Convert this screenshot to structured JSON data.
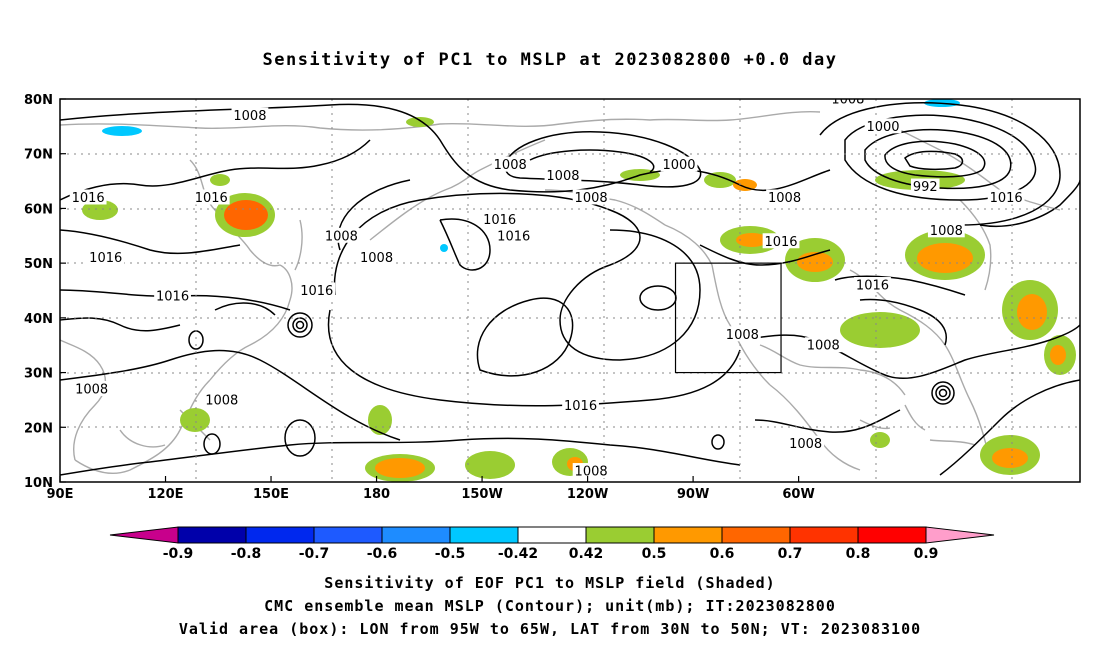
{
  "title": "Sensitivity of PC1 to MSLP at 2023082800 +0.0 day",
  "map": {
    "lon_labels": [
      "90E",
      "120E",
      "150E",
      "180",
      "150W",
      "120W",
      "90W",
      "60W"
    ],
    "lat_labels": [
      "80N",
      "70N",
      "60N",
      "50N",
      "40N",
      "30N",
      "20N",
      "10N"
    ],
    "contour_labels": [
      {
        "text": "1008",
        "lon": 144,
        "lat": 77
      },
      {
        "text": "1008",
        "lon": 218,
        "lat": 68
      },
      {
        "text": "1008",
        "lon": 233,
        "lat": 66
      },
      {
        "text": "1000",
        "lon": 266,
        "lat": 68
      },
      {
        "text": "1008",
        "lon": 241,
        "lat": 62
      },
      {
        "text": "1008",
        "lon": 296,
        "lat": 62
      },
      {
        "text": "1008",
        "lon": 314,
        "lat": 80
      },
      {
        "text": "1000",
        "lon": 324,
        "lat": 75
      },
      {
        "text": "992",
        "lon": 336,
        "lat": 64
      },
      {
        "text": "1016",
        "lon": 98,
        "lat": 62
      },
      {
        "text": "1016",
        "lon": 133,
        "lat": 62
      },
      {
        "text": "1008",
        "lon": 170,
        "lat": 55
      },
      {
        "text": "1016",
        "lon": 215,
        "lat": 58
      },
      {
        "text": "1016",
        "lon": 219,
        "lat": 55
      },
      {
        "text": "1016",
        "lon": 295,
        "lat": 54
      },
      {
        "text": "1008",
        "lon": 342,
        "lat": 56
      },
      {
        "text": "1016",
        "lon": 359,
        "lat": 62
      },
      {
        "text": "1016",
        "lon": 103,
        "lat": 51
      },
      {
        "text": "1008",
        "lon": 180,
        "lat": 51
      },
      {
        "text": "1016",
        "lon": 122,
        "lat": 44
      },
      {
        "text": "1016",
        "lon": 163,
        "lat": 45
      },
      {
        "text": "1016",
        "lon": 321,
        "lat": 46
      },
      {
        "text": "1008",
        "lon": 284,
        "lat": 37
      },
      {
        "text": "1008",
        "lon": 307,
        "lat": 35
      },
      {
        "text": "1008",
        "lon": 99,
        "lat": 27
      },
      {
        "text": "1008",
        "lon": 136,
        "lat": 25
      },
      {
        "text": "1016",
        "lon": 238,
        "lat": 24
      },
      {
        "text": "1008",
        "lon": 302,
        "lat": 17
      },
      {
        "text": "1008",
        "lon": 241,
        "lat": 12
      }
    ],
    "valid_box": {
      "lon_min": 265,
      "lon_max": 295,
      "lat_min": 30,
      "lat_max": 50
    }
  },
  "colorbar": {
    "labels": [
      "-0.9",
      "-0.8",
      "-0.7",
      "-0.6",
      "-0.5",
      "-0.42",
      "0.42",
      "0.5",
      "0.6",
      "0.7",
      "0.8",
      "0.9"
    ],
    "low_end_color": "#c8008c",
    "colors": [
      "#0000aa",
      "#0028ee",
      "#1e5aff",
      "#1e8cff",
      "#00c8ff",
      "#ffffff",
      "#9acd32",
      "#ff9900",
      "#ff6600",
      "#ff3300",
      "#ff0000"
    ],
    "high_end_color": "#ff9ecb"
  },
  "caption": {
    "line1": "Sensitivity of EOF PC1 to MSLP field (Shaded)",
    "line2": "CMC ensemble mean MSLP (Contour); unit(mb); IT:2023082800",
    "line3": "Valid area (box): LON from 95W to 65W, LAT from 30N to 50N; VT: 2023083100"
  }
}
